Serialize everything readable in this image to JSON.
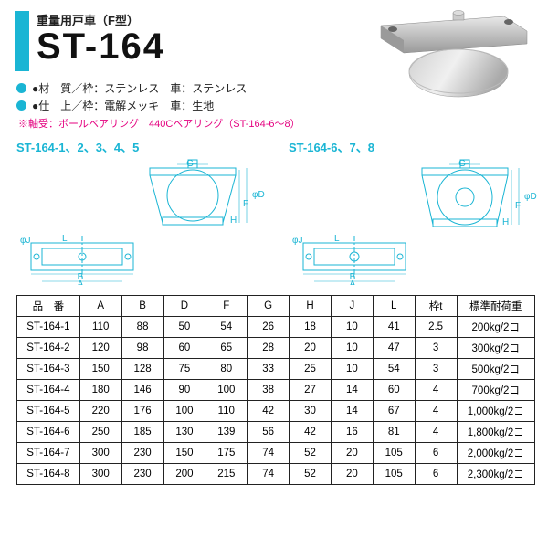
{
  "header": {
    "subtitle": "重量用戸車（F型）",
    "title": "ST-164"
  },
  "specs": [
    {
      "label": "●材　質／枠：ステンレス　車：ステンレス"
    },
    {
      "label": "●仕　上／枠：電解メッキ　車：生地"
    }
  ],
  "note": "※軸受：ボールベアリング　440Cベアリング（ST-164-6～8）",
  "diagram_groups": [
    {
      "title": "ST-164-1、2、3、4、5"
    },
    {
      "title": "ST-164-6、7、8"
    }
  ],
  "diagram_labels": [
    "G",
    "φD",
    "F",
    "H",
    "φJ",
    "L",
    "B",
    "A"
  ],
  "table": {
    "columns": [
      "品　番",
      "A",
      "B",
      "D",
      "F",
      "G",
      "H",
      "J",
      "L",
      "枠t",
      "標準耐荷重"
    ],
    "rows": [
      [
        "ST-164-1",
        "110",
        "88",
        "50",
        "54",
        "26",
        "18",
        "10",
        "41",
        "2.5",
        "200kg/2コ"
      ],
      [
        "ST-164-2",
        "120",
        "98",
        "60",
        "65",
        "28",
        "20",
        "10",
        "47",
        "3",
        "300kg/2コ"
      ],
      [
        "ST-164-3",
        "150",
        "128",
        "75",
        "80",
        "33",
        "25",
        "10",
        "54",
        "3",
        "500kg/2コ"
      ],
      [
        "ST-164-4",
        "180",
        "146",
        "90",
        "100",
        "38",
        "27",
        "14",
        "60",
        "4",
        "700kg/2コ"
      ],
      [
        "ST-164-5",
        "220",
        "176",
        "100",
        "110",
        "42",
        "30",
        "14",
        "67",
        "4",
        "1,000kg/2コ"
      ],
      [
        "ST-164-6",
        "250",
        "185",
        "130",
        "139",
        "56",
        "42",
        "16",
        "81",
        "4",
        "1,800kg/2コ"
      ],
      [
        "ST-164-7",
        "300",
        "230",
        "150",
        "175",
        "74",
        "52",
        "20",
        "105",
        "6",
        "2,000kg/2コ"
      ],
      [
        "ST-164-8",
        "300",
        "230",
        "200",
        "215",
        "74",
        "52",
        "20",
        "105",
        "6",
        "2,300kg/2コ"
      ]
    ]
  },
  "colors": {
    "accent": "#1ab5d4",
    "note": "#e4007f",
    "border": "#222222",
    "metal_light": "#d8d8d8",
    "metal_mid": "#b8b8b8",
    "metal_dark": "#989898"
  }
}
